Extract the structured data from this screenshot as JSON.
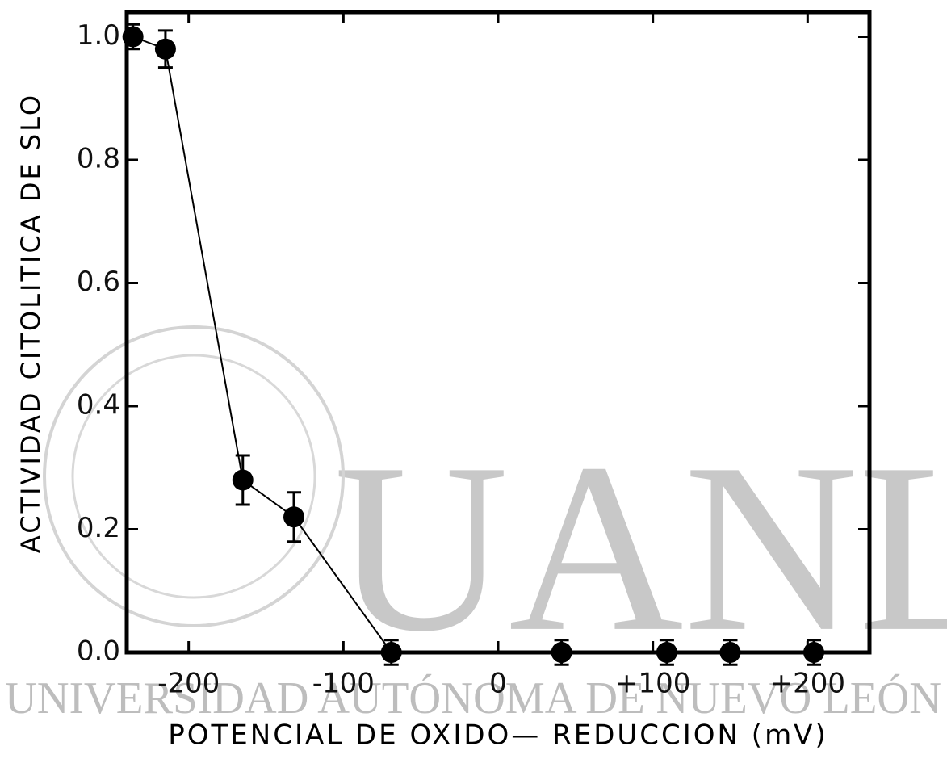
{
  "chart_data": {
    "type": "scatter",
    "x_label": "POTENCIAL DE OXIDO— REDUCCION (mV)",
    "y_label": "ACTIVIDAD CITOLITICA DE SLO",
    "x": [
      -236,
      -215,
      -165,
      -132,
      -69,
      41,
      109,
      150,
      204
    ],
    "values": [
      1.0,
      0.98,
      0.28,
      0.22,
      0.0,
      0.0,
      0.0,
      0.0,
      0.0
    ],
    "errors": [
      0.02,
      0.03,
      0.04,
      0.04,
      0.02,
      0.02,
      0.02,
      0.02,
      0.02
    ],
    "color": "#000000",
    "xlim": [
      -240,
      240
    ],
    "ylim": [
      0,
      1.04
    ],
    "xticks": [
      -200,
      -100,
      0,
      {
        "value": 100,
        "label": "+100"
      },
      {
        "value": 200,
        "label": "+200"
      }
    ],
    "yticks": [
      {
        "value": 0,
        "label": "0.0"
      },
      0.2,
      0.4,
      0.6,
      0.8,
      {
        "value": 1,
        "label": "1.0"
      }
    ]
  },
  "watermark": {
    "text": "UANL",
    "subtitle": "UNIVERSIDAD AUTÓNOMA DE NUEVO LEÓN"
  }
}
